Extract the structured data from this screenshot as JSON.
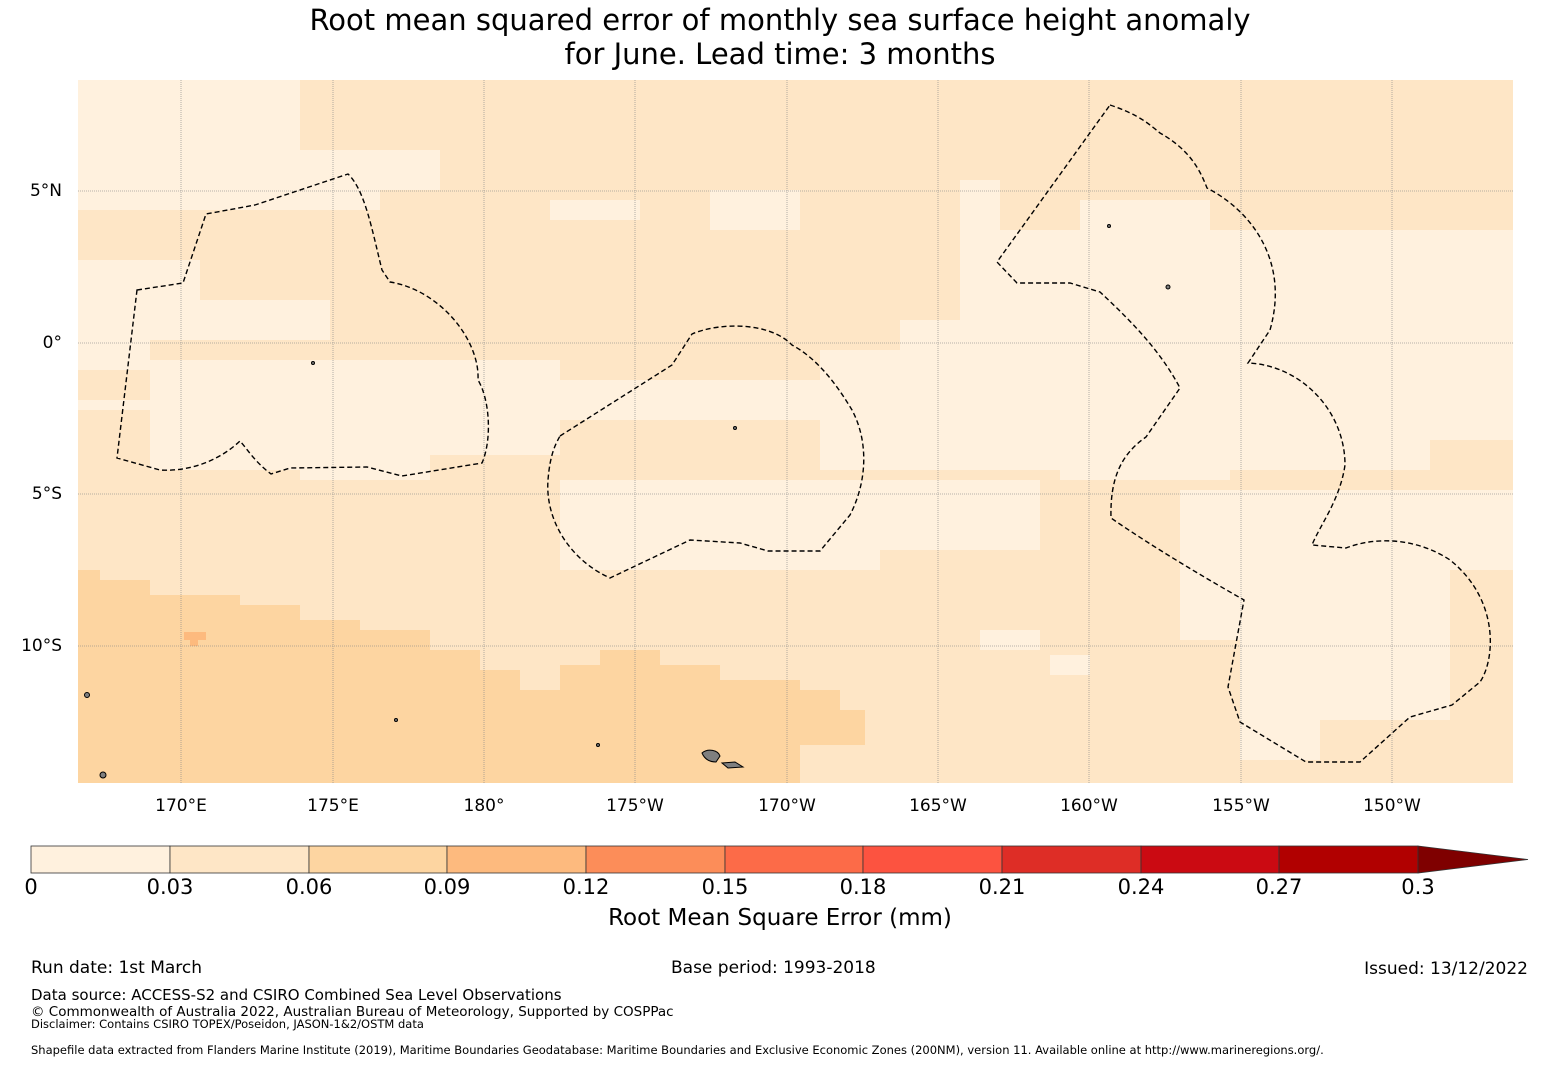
{
  "title": {
    "line1": "Root mean squared error of monthly sea surface height anomaly",
    "line2": "for June. Lead time: 3 months"
  },
  "map": {
    "y_labels": [
      "5°N",
      "0°",
      "5°S",
      "10°S"
    ],
    "x_labels": [
      "170°E",
      "175°E",
      "180°",
      "175°W",
      "170°W",
      "165°W",
      "160°W",
      "155°W",
      "150°W"
    ],
    "colors": {
      "c0": "#fff1de",
      "c1": "#fee6c6",
      "c2": "#fdd5a1",
      "c3": "#fdba7e",
      "land": "#7f7f7f"
    }
  },
  "colorbar": {
    "ticks": [
      "0",
      "0.03",
      "0.06",
      "0.09",
      "0.12",
      "0.15",
      "0.18",
      "0.21",
      "0.24",
      "0.27",
      "0.3"
    ],
    "colors": [
      "#fff1de",
      "#fee6c6",
      "#fdd5a1",
      "#fdba7e",
      "#fc8d59",
      "#fc6b48",
      "#fc5340",
      "#de2d26",
      "#cb0a12",
      "#b10000",
      "#7f0000"
    ],
    "label": "Root Mean Square Error (mm)"
  },
  "footer": {
    "run_date": "Run date: 1st March",
    "base_period": "Base period: 1993-2018",
    "issued": "Issued: 13/12/2022",
    "data_source": "Data source: ACCESS-S2 and CSIRO Combined Sea Level Observations",
    "copyright": "© Commonwealth of Australia 2022, Australian Bureau of Meteorology, Supported by COSPPac",
    "disclaimer": "Disclaimer: Contains CSIRO TOPEX/Poseidon, JASON-1&2/OSTM data",
    "shapefile": "Shapefile data extracted from Flanders Marine Institute (2019), Maritime Boundaries Geodatabase: Maritime Boundaries and Exclusive Economic Zones (200NM), version 11. Available online at http://www.marineregions.org/."
  }
}
